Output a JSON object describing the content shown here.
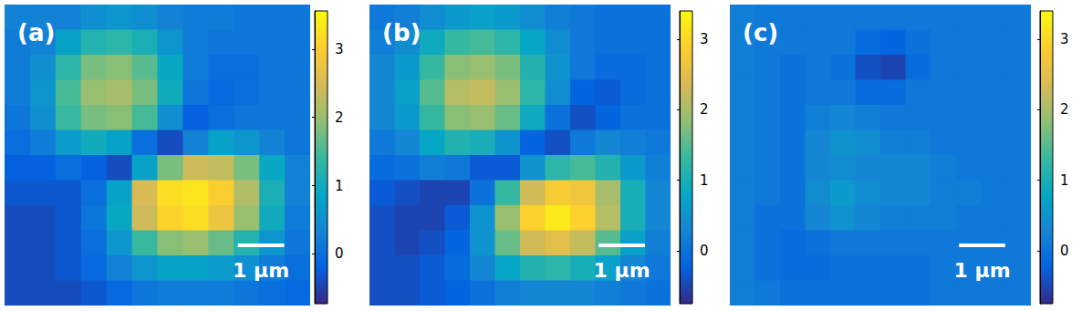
{
  "chart_data": [
    {
      "type": "heatmap",
      "label": "(a)",
      "tick_labels": false,
      "xlim": [
        0,
        6.6
      ],
      "ylim": [
        0,
        6.5
      ],
      "scale_bar": {
        "label": "1 μm",
        "length": 1
      },
      "colorbar": {
        "range": [
          -0.73,
          3.56
        ],
        "ticks": [
          0,
          1,
          2,
          3
        ]
      },
      "cells": [
        [
          0.3,
          0.3,
          0.3,
          0.5,
          0.6,
          0.5,
          0.3,
          0.2,
          0.2,
          0.1,
          0.1,
          0.1
        ],
        [
          0.2,
          0.3,
          0.8,
          1.2,
          1.3,
          1.1,
          0.6,
          0.2,
          0.1,
          0.1,
          0.1,
          0.1
        ],
        [
          0.2,
          0.5,
          1.3,
          1.8,
          1.9,
          1.6,
          0.9,
          0.2,
          0.0,
          0.0,
          0.1,
          0.1
        ],
        [
          0.2,
          0.6,
          1.5,
          2.0,
          2.1,
          1.8,
          1.0,
          0.1,
          -0.1,
          0.0,
          0.1,
          0.1
        ],
        [
          0.1,
          0.5,
          1.4,
          1.8,
          1.9,
          1.5,
          0.5,
          -0.2,
          0.0,
          0.1,
          0.1,
          0.1
        ],
        [
          0.0,
          0.2,
          0.7,
          1.0,
          0.8,
          0.0,
          -0.4,
          0.3,
          0.8,
          0.6,
          0.3,
          0.1
        ],
        [
          -0.2,
          -0.2,
          0.0,
          -0.2,
          -0.4,
          0.8,
          1.8,
          2.4,
          2.3,
          1.8,
          0.9,
          0.3
        ],
        [
          -0.3,
          -0.3,
          -0.3,
          0.0,
          0.8,
          2.5,
          3.2,
          3.3,
          3.0,
          2.2,
          1.1,
          0.3
        ],
        [
          -0.4,
          -0.4,
          -0.3,
          0.1,
          0.9,
          2.4,
          3.1,
          3.2,
          2.8,
          2.0,
          1.0,
          0.2
        ],
        [
          -0.4,
          -0.4,
          -0.3,
          0.0,
          0.6,
          1.4,
          1.9,
          2.0,
          1.7,
          1.2,
          0.6,
          0.1
        ],
        [
          -0.4,
          -0.4,
          -0.3,
          -0.1,
          0.3,
          0.6,
          0.8,
          0.8,
          0.7,
          0.5,
          0.2,
          0.0
        ],
        [
          -0.4,
          -0.4,
          -0.4,
          -0.3,
          -0.1,
          0.1,
          0.2,
          0.2,
          0.2,
          0.1,
          0.0,
          -0.1
        ]
      ]
    },
    {
      "type": "heatmap",
      "label": "(b)",
      "tick_labels": false,
      "xlim": [
        0,
        6.5
      ],
      "ylim": [
        0,
        6.5
      ],
      "scale_bar": {
        "label": "1 μm",
        "length": 1
      },
      "colorbar": {
        "range": [
          -0.75,
          3.4
        ],
        "ticks": [
          0,
          1,
          2,
          3
        ]
      },
      "cells": [
        [
          0.1,
          0.2,
          0.4,
          0.6,
          0.7,
          0.6,
          0.4,
          0.2,
          0.1,
          0.0,
          0.0,
          0.0
        ],
        [
          0.2,
          0.4,
          0.9,
          1.3,
          1.4,
          1.2,
          0.8,
          0.4,
          0.1,
          0.0,
          0.0,
          0.0
        ],
        [
          0.3,
          0.6,
          1.3,
          1.8,
          1.9,
          1.7,
          1.1,
          0.5,
          0.1,
          -0.1,
          -0.1,
          0.0
        ],
        [
          0.3,
          0.7,
          1.5,
          2.1,
          2.2,
          1.9,
          1.2,
          0.4,
          -0.2,
          -0.3,
          -0.1,
          0.0
        ],
        [
          0.3,
          0.6,
          1.3,
          1.8,
          1.9,
          1.6,
          0.9,
          0.0,
          -0.4,
          -0.2,
          0.0,
          0.0
        ],
        [
          0.1,
          0.3,
          0.8,
          1.1,
          1.0,
          0.5,
          -0.2,
          -0.4,
          0.1,
          0.3,
          0.2,
          0.1
        ],
        [
          -0.1,
          0.0,
          0.2,
          0.1,
          -0.3,
          -0.3,
          0.5,
          1.2,
          1.4,
          1.1,
          0.6,
          0.2
        ],
        [
          -0.3,
          -0.4,
          -0.5,
          -0.5,
          0.0,
          1.3,
          2.3,
          2.8,
          2.7,
          2.0,
          1.0,
          0.3
        ],
        [
          -0.4,
          -0.5,
          -0.5,
          -0.3,
          0.5,
          1.9,
          2.9,
          3.2,
          2.9,
          2.1,
          1.0,
          0.3
        ],
        [
          -0.4,
          -0.5,
          -0.4,
          -0.2,
          0.5,
          1.6,
          2.3,
          2.5,
          2.2,
          1.5,
          0.7,
          0.2
        ],
        [
          -0.4,
          -0.4,
          -0.3,
          -0.1,
          0.3,
          0.8,
          1.1,
          1.2,
          1.0,
          0.7,
          0.3,
          0.1
        ],
        [
          -0.4,
          -0.4,
          -0.3,
          -0.2,
          0.0,
          0.2,
          0.3,
          0.3,
          0.3,
          0.2,
          0.1,
          0.0
        ]
      ]
    },
    {
      "type": "heatmap",
      "label": "(c)",
      "tick_labels": false,
      "xlim": [
        0,
        6.5
      ],
      "ylim": [
        0,
        6.5
      ],
      "scale_bar": {
        "label": "1 μm",
        "length": 1
      },
      "colorbar": {
        "range": [
          -0.75,
          3.4
        ],
        "ticks": [
          0,
          1,
          2,
          3
        ]
      },
      "cells": [
        [
          0.2,
          0.1,
          0.1,
          0.1,
          0.1,
          0.1,
          0.1,
          0.1,
          0.1,
          0.1,
          0.1,
          0.1
        ],
        [
          0.2,
          0.1,
          0.1,
          0.1,
          0.1,
          -0.1,
          -0.2,
          0.0,
          0.1,
          0.1,
          0.1,
          0.1
        ],
        [
          0.2,
          0.1,
          0.0,
          0.1,
          0.0,
          -0.4,
          -0.5,
          -0.1,
          0.1,
          0.1,
          0.1,
          0.1
        ],
        [
          0.2,
          0.1,
          0.0,
          0.1,
          0.1,
          -0.1,
          -0.1,
          0.1,
          0.1,
          0.1,
          0.1,
          0.1
        ],
        [
          0.2,
          0.1,
          0.0,
          0.2,
          0.3,
          0.2,
          0.1,
          0.1,
          0.1,
          0.1,
          0.1,
          0.1
        ],
        [
          0.2,
          0.1,
          0.0,
          0.3,
          0.5,
          0.4,
          0.2,
          0.2,
          0.1,
          0.1,
          0.1,
          0.1
        ],
        [
          0.2,
          0.1,
          0.0,
          0.3,
          0.4,
          0.3,
          0.3,
          0.3,
          0.2,
          0.1,
          0.1,
          0.1
        ],
        [
          0.2,
          0.1,
          0.0,
          0.4,
          0.6,
          0.4,
          0.3,
          0.3,
          0.2,
          0.2,
          0.1,
          0.1
        ],
        [
          0.2,
          0.0,
          0.0,
          0.3,
          0.5,
          0.3,
          0.2,
          0.2,
          0.2,
          0.1,
          0.1,
          0.1
        ],
        [
          0.2,
          0.0,
          -0.1,
          0.0,
          0.1,
          0.1,
          0.1,
          0.1,
          0.1,
          0.1,
          0.1,
          0.1
        ],
        [
          0.2,
          0.0,
          -0.1,
          -0.1,
          0.0,
          0.0,
          0.0,
          0.0,
          0.1,
          0.1,
          0.1,
          0.1
        ],
        [
          0.2,
          0.1,
          0.0,
          0.0,
          0.0,
          0.0,
          0.0,
          0.0,
          0.1,
          0.1,
          0.1,
          0.1
        ]
      ]
    }
  ]
}
